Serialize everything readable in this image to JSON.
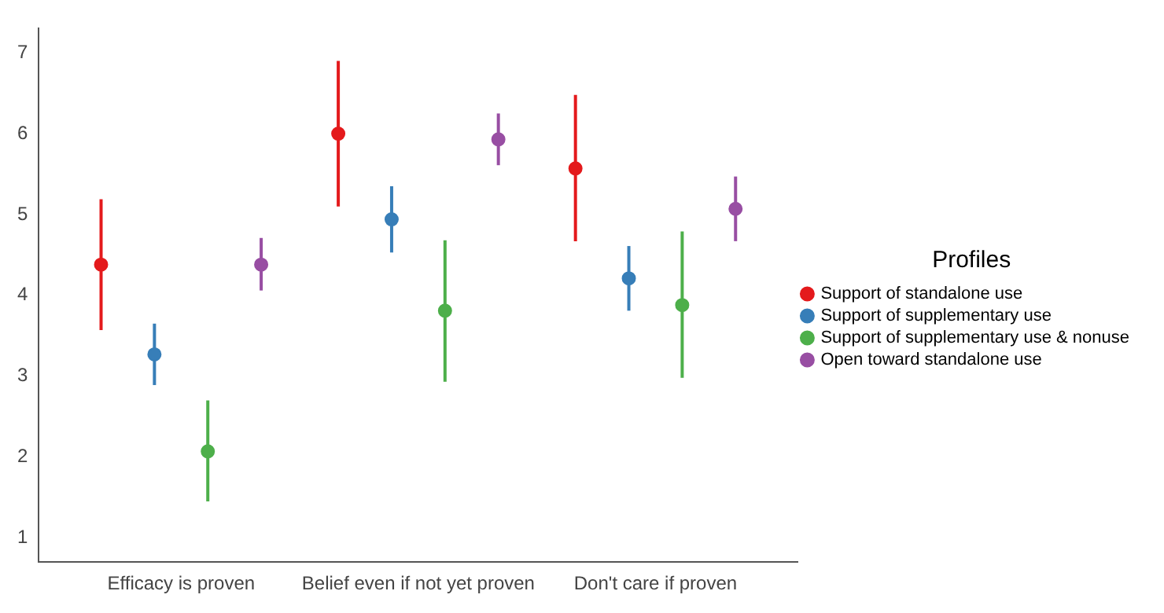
{
  "chart_data": {
    "type": "scatter",
    "categories": [
      "Efficacy is proven",
      "Belief even if not yet proven",
      "Don't care if proven"
    ],
    "legend_title": "Profiles",
    "legend": "right",
    "grid": false,
    "marker": "circle",
    "ylim": [
      0.7,
      7.3
    ],
    "yticks": [
      1,
      2,
      3,
      4,
      5,
      6,
      7
    ],
    "series": [
      {
        "name": "Support of standalone use",
        "color": "#e41a1c",
        "values": [
          4.38,
          6.0,
          5.57
        ],
        "errors": [
          [
            3.57,
            5.19
          ],
          [
            5.1,
            6.9
          ],
          [
            4.67,
            6.48
          ]
        ]
      },
      {
        "name": "Support of supplementary use",
        "color": "#377eb8",
        "values": [
          3.27,
          4.94,
          4.21
        ],
        "errors": [
          [
            2.89,
            3.65
          ],
          [
            4.53,
            5.35
          ],
          [
            3.81,
            4.61
          ]
        ]
      },
      {
        "name": "Support of supplementary use & nonuse",
        "color": "#4daf4a",
        "values": [
          2.07,
          3.81,
          3.88
        ],
        "errors": [
          [
            1.45,
            2.7
          ],
          [
            2.93,
            4.68
          ],
          [
            2.98,
            4.79
          ]
        ]
      },
      {
        "name": "Open toward standalone use",
        "color": "#984ea3",
        "values": [
          4.38,
          5.93,
          5.07
        ],
        "errors": [
          [
            4.06,
            4.71
          ],
          [
            5.61,
            6.25
          ],
          [
            4.67,
            5.47
          ]
        ]
      }
    ]
  }
}
